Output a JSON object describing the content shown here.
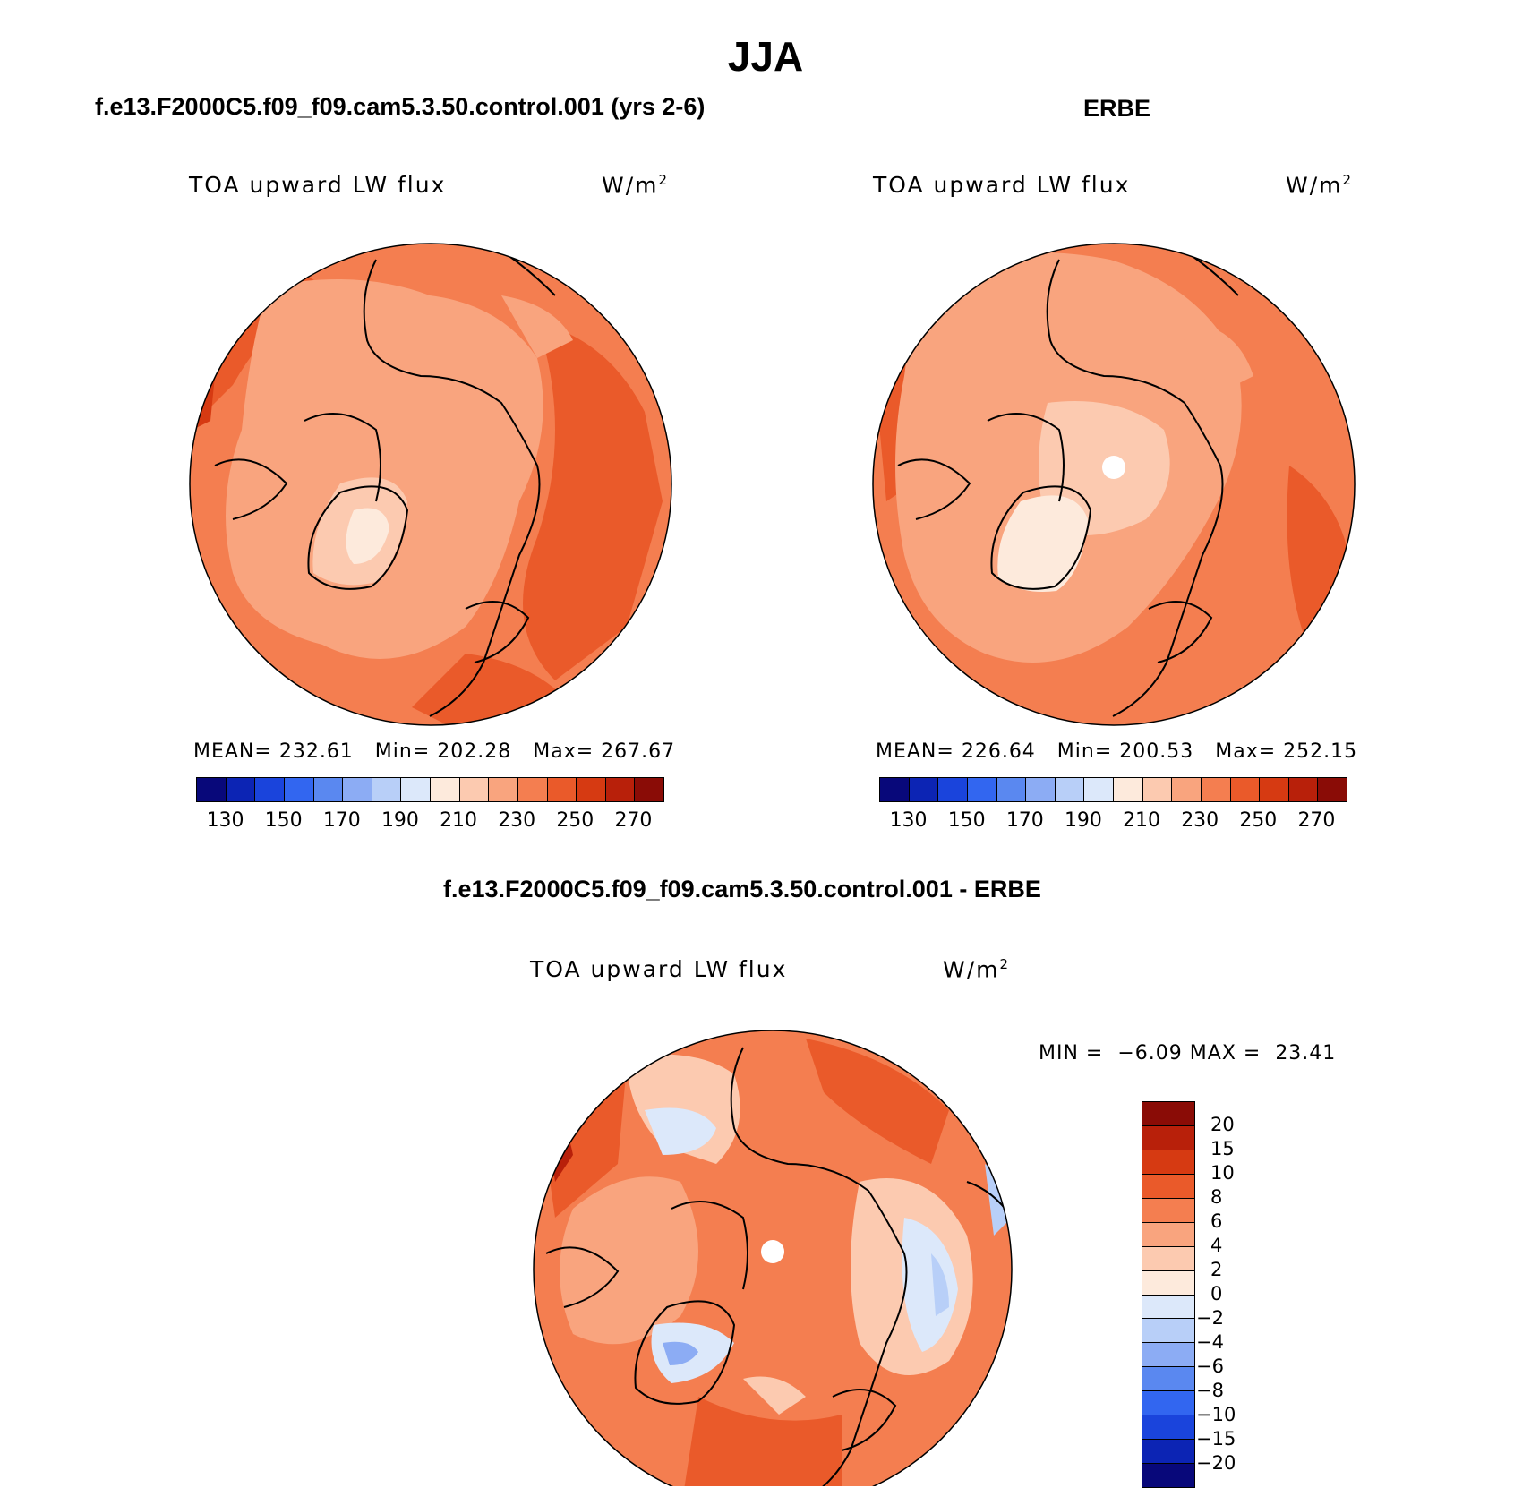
{
  "figure": {
    "title": "JJA",
    "left_case": "f.e13.F2000C5.f09_f09.cam5.3.50.control.001 (yrs 2-6)",
    "right_case": "ERBE",
    "diff_case": "f.e13.F2000C5.f09_f09.cam5.3.50.control.001 - ERBE"
  },
  "panels": {
    "model": {
      "variable": "TOA upward LW flux",
      "units": "W/m",
      "units_exp": "2",
      "mean_label": "MEAN=",
      "mean": "232.61",
      "min_label": "Min=",
      "min": "202.28",
      "max_label": "Max=",
      "max": "267.67"
    },
    "obs": {
      "variable": "TOA upward LW flux",
      "units": "W/m",
      "units_exp": "2",
      "mean_label": "MEAN=",
      "mean": "226.64",
      "min_label": "Min=",
      "min": "200.53",
      "max_label": "Max=",
      "max": "252.15"
    },
    "diff": {
      "variable": "TOA upward LW flux",
      "units": "W/m",
      "units_exp": "2",
      "min_label": "MIN =",
      "min": "−6.09",
      "max_label": "MAX =",
      "max": "23.41"
    }
  },
  "colorbar_abs": {
    "ticks": [
      "130",
      "150",
      "170",
      "190",
      "210",
      "230",
      "250",
      "270"
    ],
    "colors": [
      "#08087a",
      "#0c24b4",
      "#1a44dc",
      "#3266f0",
      "#5a88f0",
      "#8cacf4",
      "#b8cff8",
      "#dce8fa",
      "#fdeadc",
      "#fccab0",
      "#f9a47e",
      "#f47e50",
      "#ea5a2a",
      "#d63a12",
      "#b8200a",
      "#8a0c06"
    ]
  },
  "colorbar_diff": {
    "labels": [
      "20",
      "15",
      "10",
      "8",
      "6",
      "4",
      "2",
      "0",
      "−2",
      "−4",
      "−6",
      "−8",
      "−10",
      "−15",
      "−20"
    ],
    "colors": [
      "#8a0c06",
      "#b8200a",
      "#d63a12",
      "#ea5a2a",
      "#f47e50",
      "#f9a47e",
      "#fccab0",
      "#fdeadc",
      "#dce8fa",
      "#b8cff8",
      "#8cacf4",
      "#5a88f0",
      "#3266f0",
      "#1a44dc",
      "#0c24b4",
      "#08087a"
    ]
  }
}
